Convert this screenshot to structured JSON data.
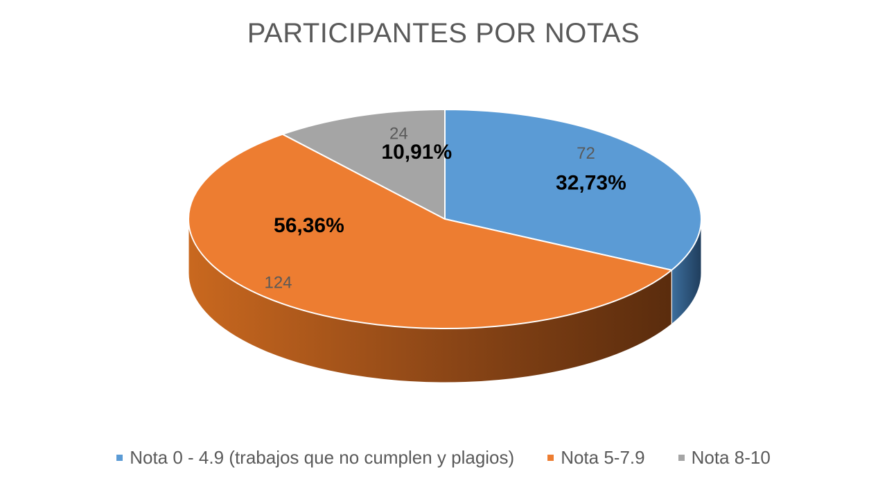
{
  "chart_data": {
    "type": "pie",
    "title": "PARTICIPANTES POR NOTAS",
    "categories": [
      "Nota 0 - 4.9 (trabajos que no cumplen y plagios)",
      "Nota 5-7.9",
      "Nota 8-10"
    ],
    "values": [
      72,
      124,
      24
    ],
    "percent_labels": [
      "32,73%",
      "56,36%",
      "10,91%"
    ],
    "colors": [
      "#5B9BD5",
      "#ED7D31",
      "#A5A5A5"
    ],
    "style": "3d",
    "legend": "bottom"
  }
}
